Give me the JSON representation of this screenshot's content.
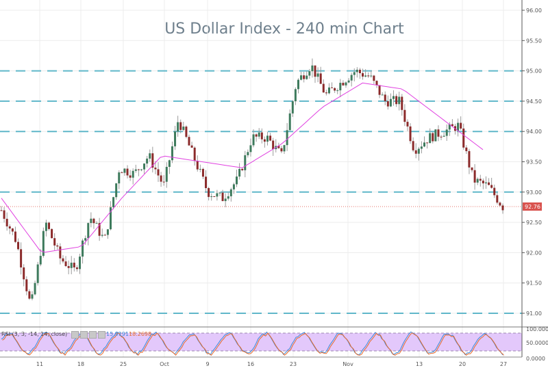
{
  "header": {
    "title": "US Dollar Index - 240 min Chart"
  },
  "price_axis": {
    "ticks": [
      "96.00",
      "95.50",
      "95.00",
      "94.50",
      "94.00",
      "93.50",
      "93.00",
      "92.50",
      "92.00",
      "91.50",
      "91.00"
    ],
    "last_price": "92.76",
    "last_price_color": "#d9534f"
  },
  "rsi_panel": {
    "label": "RSI (3, 3, -14, 14, close)",
    "value1": "15.9191",
    "value2": "18.2698",
    "value1_color": "#3b8bd9",
    "value2_color": "#e86a2a",
    "axis_ticks": [
      "100.0000",
      "50.0000",
      "0.0000"
    ],
    "band_color": "#e3c8fb"
  },
  "time_axis": {
    "ticks": [
      "11",
      "18",
      "25",
      "Oct",
      "9",
      "16",
      "23",
      "Nov",
      "13",
      "20",
      "27"
    ]
  },
  "chart_data": {
    "type": "candlestick",
    "title": "US Dollar Index - 240 min Chart",
    "xlabel": "",
    "ylabel": "",
    "ylim": [
      90.8,
      96.1
    ],
    "x_ticks": [
      "11",
      "18",
      "25",
      "Oct",
      "9",
      "16",
      "23",
      "Nov",
      "13",
      "20",
      "27"
    ],
    "horizontal_levels": [
      95.0,
      94.5,
      94.0,
      93.0,
      91.0
    ],
    "last_price": 92.76,
    "moving_average_color": "#e040e0",
    "approx_path": [
      {
        "date": "Sep 6",
        "close": 92.7
      },
      {
        "date": "Sep 8",
        "close": 92.2
      },
      {
        "date": "Sep 10",
        "close": 91.1
      },
      {
        "date": "Sep 12",
        "close": 92.5
      },
      {
        "date": "Sep 15",
        "close": 91.9
      },
      {
        "date": "Sep 20",
        "close": 91.7
      },
      {
        "date": "Sep 21",
        "close": 92.6
      },
      {
        "date": "Sep 25",
        "close": 92.2
      },
      {
        "date": "Sep 27",
        "close": 93.4
      },
      {
        "date": "Sep 29",
        "close": 93.3
      },
      {
        "date": "Oct 3",
        "close": 93.6
      },
      {
        "date": "Oct 5",
        "close": 93.1
      },
      {
        "date": "Oct 9",
        "close": 94.2
      },
      {
        "date": "Oct 11",
        "close": 93.6
      },
      {
        "date": "Oct 13",
        "close": 93.0
      },
      {
        "date": "Oct 16",
        "close": 92.9
      },
      {
        "date": "Oct 18",
        "close": 93.2
      },
      {
        "date": "Oct 20",
        "close": 93.9
      },
      {
        "date": "Oct 23",
        "close": 93.9
      },
      {
        "date": "Oct 25",
        "close": 93.6
      },
      {
        "date": "Oct 26",
        "close": 94.8
      },
      {
        "date": "Oct 27",
        "close": 95.1
      },
      {
        "date": "Oct 30",
        "close": 94.6
      },
      {
        "date": "Nov 2",
        "close": 94.8
      },
      {
        "date": "Nov 7",
        "close": 95.0
      },
      {
        "date": "Nov 9",
        "close": 94.9
      },
      {
        "date": "Nov 10",
        "close": 94.5
      },
      {
        "date": "Nov 13",
        "close": 94.5
      },
      {
        "date": "Nov 15",
        "close": 93.7
      },
      {
        "date": "Nov 17",
        "close": 93.9
      },
      {
        "date": "Nov 20",
        "close": 94.0
      },
      {
        "date": "Nov 21",
        "close": 94.1
      },
      {
        "date": "Nov 23",
        "close": 93.2
      },
      {
        "date": "Nov 24",
        "close": 93.1
      },
      {
        "date": "Nov 27",
        "close": 92.76
      }
    ],
    "ma_path": [
      {
        "date": "Sep 6",
        "value": 92.9
      },
      {
        "date": "Sep 18",
        "value": 92.0
      },
      {
        "date": "Sep 25",
        "value": 92.1
      },
      {
        "date": "Oct 3",
        "value": 92.9
      },
      {
        "date": "Oct 11",
        "value": 93.6
      },
      {
        "date": "Oct 16",
        "value": 93.5
      },
      {
        "date": "Oct 20",
        "value": 93.4
      },
      {
        "date": "Oct 26",
        "value": 93.8
      },
      {
        "date": "Nov 2",
        "value": 94.4
      },
      {
        "date": "Nov 9",
        "value": 94.8
      },
      {
        "date": "Nov 13",
        "value": 94.7
      },
      {
        "date": "Nov 20",
        "value": 94.2
      },
      {
        "date": "Nov 24",
        "value": 93.7
      }
    ],
    "rsi": {
      "label": "RSI (3, 3, -14, 14, close)",
      "ylim": [
        0,
        100
      ],
      "bands": [
        20,
        80
      ],
      "last_values": [
        15.9191,
        18.2698
      ]
    }
  }
}
